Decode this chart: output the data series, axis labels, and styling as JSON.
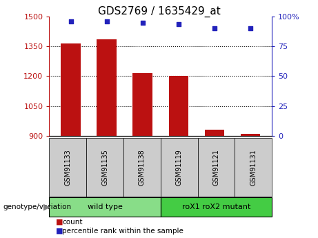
{
  "title": "GDS2769 / 1635429_at",
  "categories": [
    "GSM91133",
    "GSM91135",
    "GSM91138",
    "GSM91119",
    "GSM91121",
    "GSM91131"
  ],
  "bar_values": [
    1365,
    1385,
    1215,
    1200,
    930,
    910
  ],
  "scatter_values": [
    96,
    96,
    95,
    94,
    90,
    90
  ],
  "ylim_left": [
    900,
    1500
  ],
  "ylim_right": [
    0,
    100
  ],
  "yticks_left": [
    900,
    1050,
    1200,
    1350,
    1500
  ],
  "yticks_right": [
    0,
    25,
    50,
    75,
    100
  ],
  "bar_color": "#bb1111",
  "scatter_color": "#2222bb",
  "bar_bottom": 900,
  "groups": [
    {
      "label": "wild type",
      "indices": [
        0,
        1,
        2
      ],
      "color": "#88dd88"
    },
    {
      "label": "roX1 roX2 mutant",
      "indices": [
        3,
        4,
        5
      ],
      "color": "#44cc44"
    }
  ],
  "group_label": "genotype/variation",
  "legend_count_label": "count",
  "legend_pct_label": "percentile rank within the sample",
  "right_axis_color": "#2222bb",
  "left_axis_color": "#bb1111",
  "sample_box_color": "#cccccc",
  "group_colors": [
    "#88dd88",
    "#44cc44"
  ]
}
